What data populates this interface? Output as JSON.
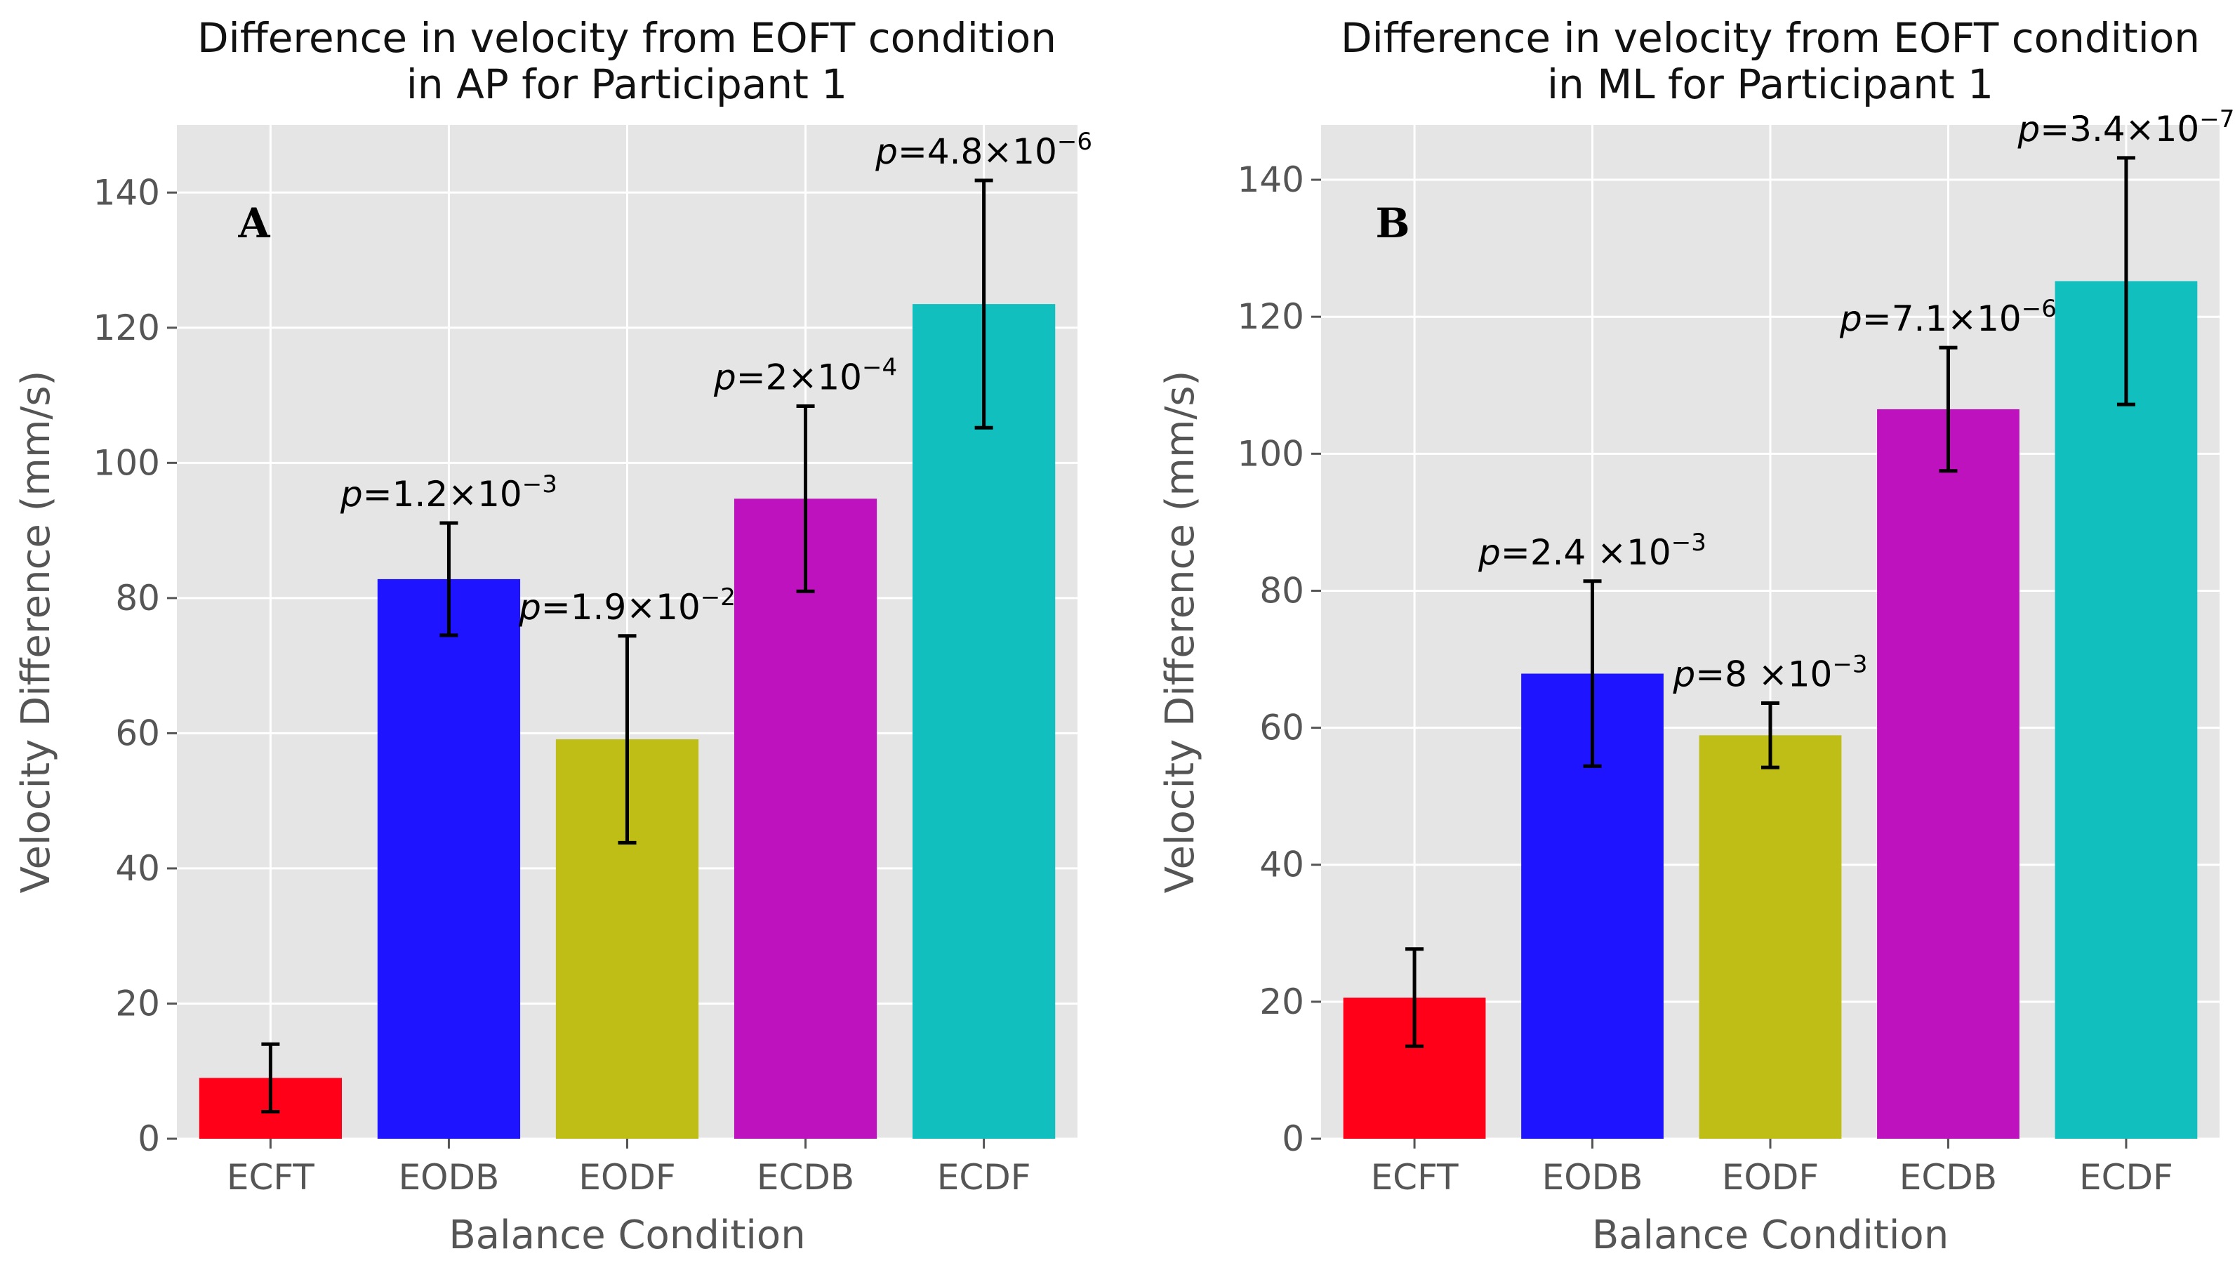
{
  "chart_data": [
    {
      "type": "bar",
      "panel_label": "A",
      "title_lines": [
        "Difference in velocity from EOFT condition",
        "in AP for Participant 1"
      ],
      "xlabel": "Balance Condition",
      "ylabel": "Velocity Difference (mm/s)",
      "ylim": [
        0,
        150
      ],
      "yticks": [
        0,
        20,
        40,
        60,
        80,
        100,
        120,
        140
      ],
      "grid": true,
      "categories": [
        "ECFT",
        "EODB",
        "EODF",
        "ECDB",
        "ECDF"
      ],
      "values": [
        9,
        82.8,
        59.1,
        94.7,
        123.5
      ],
      "errors": [
        5,
        8.3,
        15.3,
        13.7,
        18.3
      ],
      "colors": [
        "#ff0018",
        "#1f14ff",
        "#bebe16",
        "#be12be",
        "#12bfbf"
      ],
      "annotations": [
        null,
        {
          "prefix": "p",
          "text": "=1.2×10",
          "exponent": "−3"
        },
        {
          "prefix": "p",
          "text": "=1.9×10",
          "exponent": "−2"
        },
        {
          "prefix": "p",
          "text": "=2×10",
          "exponent": "−4"
        },
        {
          "prefix": "p",
          "text": "=4.8×10",
          "exponent": "−6"
        }
      ]
    },
    {
      "type": "bar",
      "panel_label": "B",
      "title_lines": [
        "Difference in velocity from EOFT condition",
        "in ML for Participant 1"
      ],
      "xlabel": "Balance Condition",
      "ylabel": "Velocity Difference (mm/s)",
      "ylim": [
        0,
        148
      ],
      "yticks": [
        0,
        20,
        40,
        60,
        80,
        100,
        120,
        140
      ],
      "grid": true,
      "categories": [
        "ECFT",
        "EODB",
        "EODF",
        "ECDB",
        "ECDF"
      ],
      "values": [
        20.6,
        67.9,
        58.9,
        106.5,
        125.2
      ],
      "errors": [
        7.1,
        13.5,
        4.7,
        9,
        18
      ],
      "colors": [
        "#ff0018",
        "#1f14ff",
        "#bebe16",
        "#be12be",
        "#12bfbf"
      ],
      "annotations": [
        null,
        {
          "prefix": "p",
          "text": "=2.4 ×10",
          "exponent": "−3"
        },
        {
          "prefix": "p",
          "text": "=8 ×10",
          "exponent": "−3"
        },
        {
          "prefix": "p",
          "text": "=7.1×10",
          "exponent": "−6"
        },
        {
          "prefix": "p",
          "text": "=3.4×10",
          "exponent": "−7"
        }
      ]
    }
  ]
}
